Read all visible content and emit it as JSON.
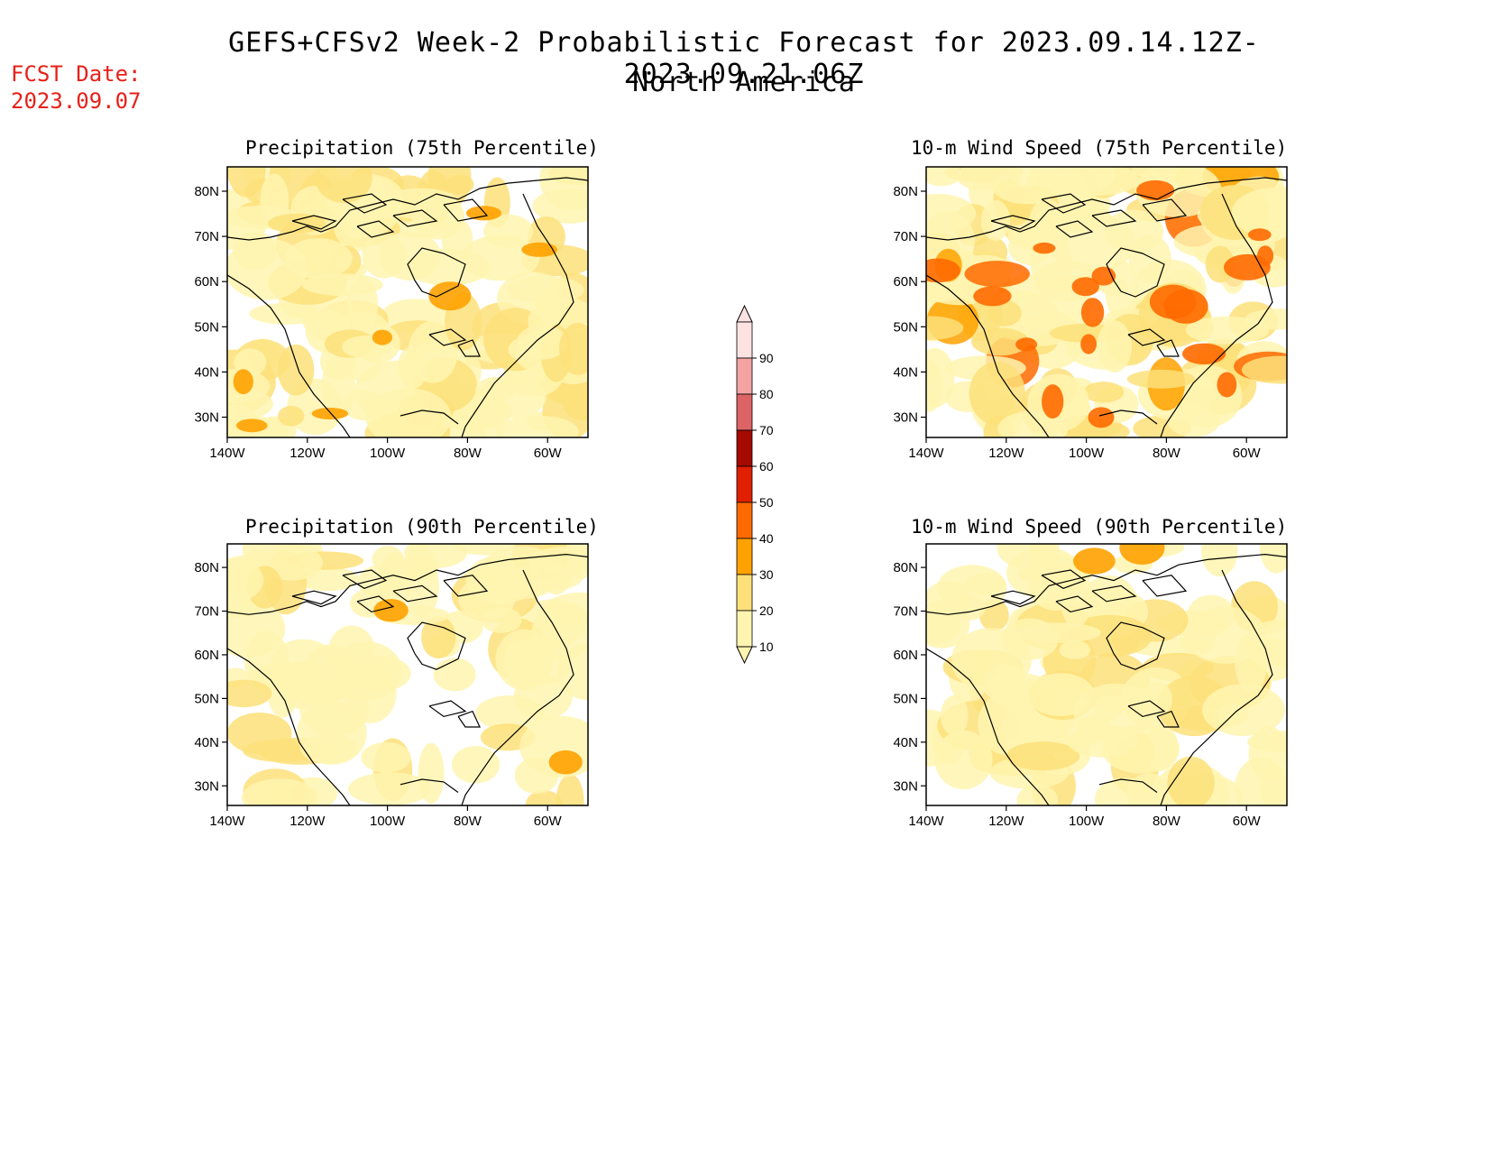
{
  "header": {
    "title_line1": "GEFS+CFSv2 Week-2 Probabilistic Forecast for 2023.09.14.12Z-2023.09.21.06Z",
    "title_line2": "North America",
    "fcst_label": "FCST Date:",
    "fcst_value": "2023.09.07"
  },
  "panels": [
    {
      "id": "precip75",
      "title": "Precipitation (75th Percentile)",
      "level": 0.55
    },
    {
      "id": "wind75",
      "title": "10-m Wind Speed (75th Percentile)",
      "level": 0.75
    },
    {
      "id": "precip90",
      "title": "Precipitation (90th Percentile)",
      "level": 0.2
    },
    {
      "id": "wind90",
      "title": "10-m Wind Speed (90th Percentile)",
      "level": 0.3
    }
  ],
  "axes": {
    "lat_ticks": [
      "80N",
      "70N",
      "60N",
      "50N",
      "40N",
      "30N"
    ],
    "lon_ticks": [
      "140W",
      "120W",
      "100W",
      "80W",
      "60W"
    ]
  },
  "colorbar": {
    "labels": [
      "90",
      "80",
      "70",
      "60",
      "50",
      "40",
      "30",
      "20",
      "10"
    ],
    "colors": [
      "#fde2e2",
      "#f4a3a3",
      "#dd6464",
      "#a50a00",
      "#e02000",
      "#ff6a00",
      "#ffa200",
      "#fde07a",
      "#fff5b0"
    ],
    "unit": ""
  },
  "palette": {
    "c10": "#fff5b0",
    "c20": "#fde07a",
    "c30": "#ffa200",
    "c40": "#ff6a00",
    "c50": "#e02000",
    "c60": "#a50a00"
  }
}
